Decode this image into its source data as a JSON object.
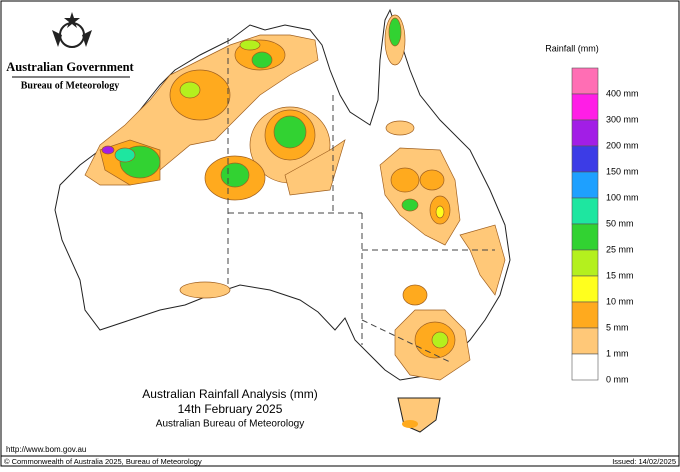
{
  "header": {
    "government": "Australian Government",
    "agency": "Bureau of Meteorology"
  },
  "legend": {
    "title": "Rainfall (mm)",
    "items": [
      {
        "label": "400 mm",
        "color": "#ff6eb4"
      },
      {
        "label": "300 mm",
        "color": "#ff1ee6"
      },
      {
        "label": "200 mm",
        "color": "#a21ee6"
      },
      {
        "label": "150 mm",
        "color": "#3c3ce6"
      },
      {
        "label": "100 mm",
        "color": "#1ea0ff"
      },
      {
        "label": "50 mm",
        "color": "#1ee6a0"
      },
      {
        "label": "25 mm",
        "color": "#32d232"
      },
      {
        "label": "15 mm",
        "color": "#b4f01e"
      },
      {
        "label": "10 mm",
        "color": "#ffff1e"
      },
      {
        "label": "5 mm",
        "color": "#ffaa1e"
      },
      {
        "label": "1 mm",
        "color": "#ffc878"
      },
      {
        "label": "0 mm",
        "color": "#ffffff"
      }
    ]
  },
  "title": {
    "line1": "Australian Rainfall Analysis (mm)",
    "line2": "14th February 2025",
    "line3": "Australian Bureau of Meteorology"
  },
  "footer": {
    "url": "http://www.bom.gov.au",
    "copyright": "© Commonwealth of Australia 2025, Bureau of Meteorology",
    "issued": "Issued: 14/02/2025"
  }
}
